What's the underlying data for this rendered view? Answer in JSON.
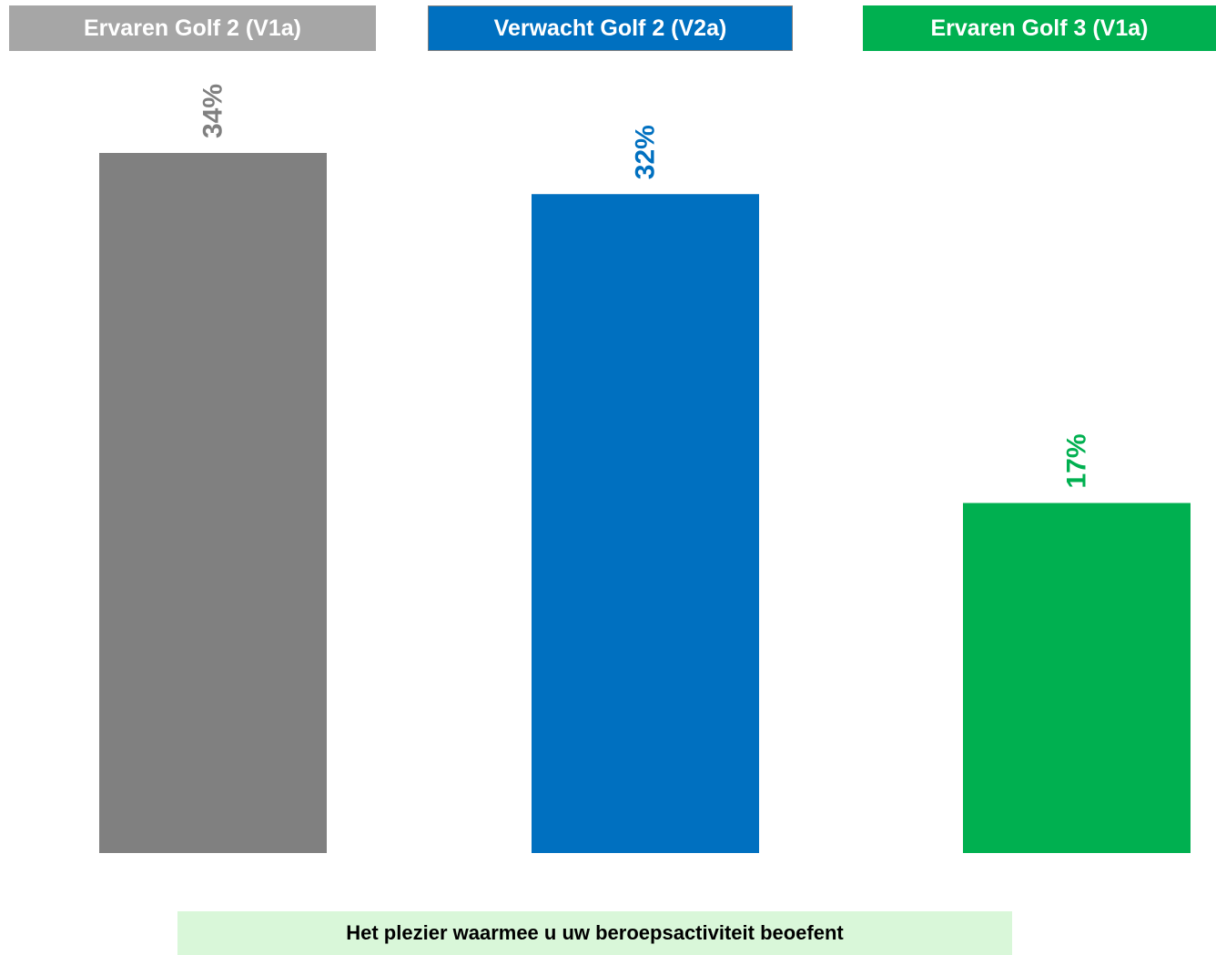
{
  "legend": [
    {
      "label": "Ervaren Golf 2 (V1a)",
      "color": "#a6a6a6"
    },
    {
      "label": "Verwacht Golf 2 (V2a)",
      "color": "#0070c0"
    },
    {
      "label": "Ervaren Golf 3 (V1a)",
      "color": "#00b050"
    }
  ],
  "chart_data": {
    "type": "bar",
    "categories": [
      "Ervaren Golf 2 (V1a)",
      "Verwacht Golf 2 (V2a)",
      "Ervaren Golf 3 (V1a)"
    ],
    "values": [
      34,
      32,
      17
    ],
    "value_labels": [
      "34%",
      "32%",
      "17%"
    ],
    "bar_colors": [
      "#808080",
      "#0070c0",
      "#00b050"
    ],
    "label_colors": [
      "#808080",
      "#0070c0",
      "#00b050"
    ],
    "unit": "%",
    "title": "Het plezier waarmee u uw beroepsactiviteit beoefent",
    "ylim": [
      0,
      34
    ],
    "grid": false,
    "legend_position": "top"
  }
}
